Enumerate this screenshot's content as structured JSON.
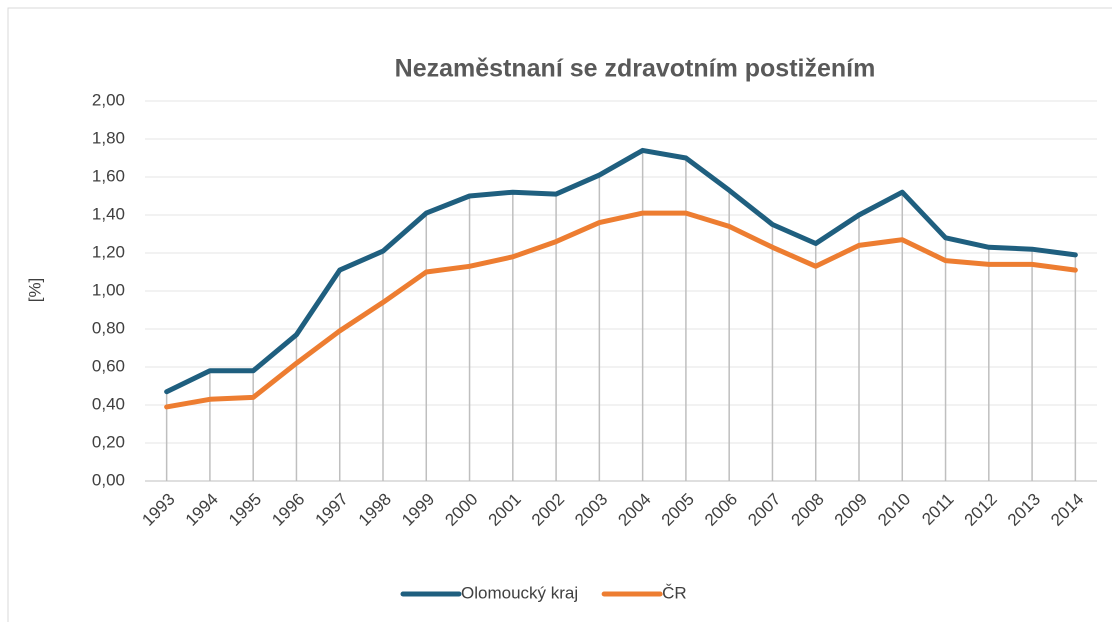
{
  "chart_data": {
    "type": "line",
    "title": "Nezaměstnaní se zdravotním postižením",
    "y_label": "[%]",
    "categories": [
      "1993",
      "1994",
      "1995",
      "1996",
      "1997",
      "1998",
      "1999",
      "2000",
      "2001",
      "2002",
      "2003",
      "2004",
      "2005",
      "2006",
      "2007",
      "2008",
      "2009",
      "2010",
      "2011",
      "2012",
      "2013",
      "2014"
    ],
    "series": [
      {
        "name": "Olomoucký kraj",
        "color": "#1f5f7f",
        "values": [
          0.47,
          0.58,
          0.58,
          0.77,
          1.11,
          1.21,
          1.41,
          1.5,
          1.52,
          1.51,
          1.61,
          1.74,
          1.7,
          1.53,
          1.35,
          1.25,
          1.4,
          1.52,
          1.28,
          1.23,
          1.22,
          1.19
        ]
      },
      {
        "name": "ČR",
        "color": "#ed7d31",
        "values": [
          0.39,
          0.43,
          0.44,
          0.62,
          0.79,
          0.94,
          1.1,
          1.13,
          1.18,
          1.26,
          1.36,
          1.41,
          1.41,
          1.34,
          1.23,
          1.13,
          1.24,
          1.27,
          1.16,
          1.14,
          1.14,
          1.11
        ]
      }
    ],
    "ylim": [
      0,
      2
    ],
    "yticks": [
      {
        "value": 0,
        "label": "0,00"
      },
      {
        "value": 0.2,
        "label": "0,20"
      },
      {
        "value": 0.4,
        "label": "0,40"
      },
      {
        "value": 0.6,
        "label": "0,60"
      },
      {
        "value": 0.8,
        "label": "0,80"
      },
      {
        "value": 1,
        "label": "1,00"
      },
      {
        "value": 1.2,
        "label": "1,20"
      },
      {
        "value": 1.4,
        "label": "1,40"
      },
      {
        "value": 1.6,
        "label": "1,60"
      },
      {
        "value": 1.8,
        "label": "1,80"
      },
      {
        "value": 2,
        "label": "2,00"
      }
    ],
    "grid": true,
    "drop_lines": true,
    "legend": "bottom"
  }
}
